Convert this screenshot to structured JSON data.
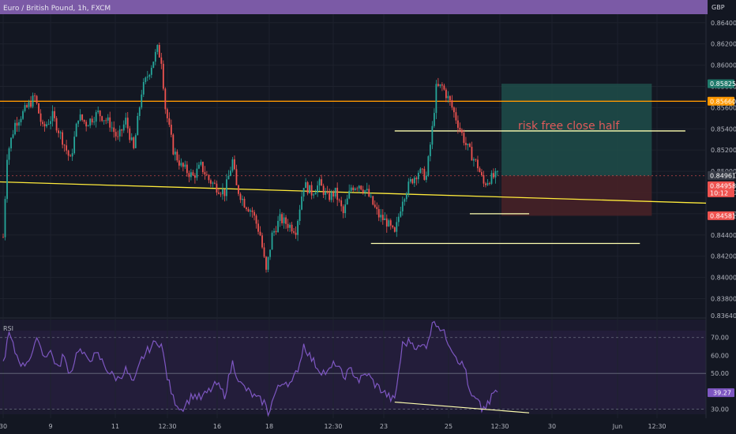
{
  "header": {
    "title": "Euro / British Pound, 1h, FXCM",
    "currency": "GBP"
  },
  "colors": {
    "bg": "#131722",
    "header": "#7b5aa6",
    "up": "#26a69a",
    "down": "#ef5350",
    "rsi": "#7e57c2",
    "orange": "#ff9800",
    "yellow": "#ffeb3b",
    "white_line": "#ffffb0",
    "profit_zone": "#1f4e4a",
    "loss_zone": "#4a2227"
  },
  "price_axis": {
    "ticks": [
      "0.86400",
      "0.86200",
      "0.86000",
      "0.85800",
      "0.85600",
      "0.85400",
      "0.85200",
      "0.85000",
      "0.84800",
      "0.84600",
      "0.84400",
      "0.84200",
      "0.84000",
      "0.83800",
      "0.83640"
    ],
    "tick_values": [
      0.864,
      0.862,
      0.86,
      0.858,
      0.856,
      0.854,
      0.852,
      0.85,
      0.848,
      0.846,
      0.844,
      0.842,
      0.84,
      0.838,
      0.8364
    ]
  },
  "price_labels": {
    "target": "0.85825",
    "resistance": "0.85660",
    "last_a": "0.84961",
    "last_b": "0.84958",
    "countdown": "10:12",
    "stop": "0.84581"
  },
  "annotation": {
    "text": "risk free close half"
  },
  "rsi": {
    "label": "RSI",
    "ticks": [
      "70.00",
      "60.00",
      "50.00",
      "40.00",
      "30.00"
    ],
    "tick_values": [
      70,
      60,
      50,
      40,
      30
    ],
    "current": "39.27"
  },
  "time_axis": {
    "labels": [
      "30",
      "9",
      "11",
      "12:30",
      "16",
      "18",
      "12:30",
      "23",
      "25",
      "12:30",
      "30",
      "Jun",
      "12:30"
    ]
  },
  "chart_data": {
    "type": "candlestick",
    "title": "Euro / British Pound, 1h, FXCM",
    "y_unit": "GBP",
    "ylim": [
      0.8364,
      0.8648
    ],
    "close_path": [
      {
        "t": 0,
        "p": 0.8438
      },
      {
        "t": 2,
        "p": 0.8515
      },
      {
        "t": 6,
        "p": 0.8545
      },
      {
        "t": 10,
        "p": 0.8555
      },
      {
        "t": 16,
        "p": 0.857
      },
      {
        "t": 20,
        "p": 0.854
      },
      {
        "t": 25,
        "p": 0.8552
      },
      {
        "t": 30,
        "p": 0.853
      },
      {
        "t": 34,
        "p": 0.851
      },
      {
        "t": 38,
        "p": 0.8552
      },
      {
        "t": 42,
        "p": 0.8545
      },
      {
        "t": 48,
        "p": 0.8555
      },
      {
        "t": 54,
        "p": 0.8545
      },
      {
        "t": 58,
        "p": 0.853
      },
      {
        "t": 62,
        "p": 0.8548
      },
      {
        "t": 66,
        "p": 0.852
      },
      {
        "t": 70,
        "p": 0.8575
      },
      {
        "t": 74,
        "p": 0.8595
      },
      {
        "t": 78,
        "p": 0.8615
      },
      {
        "t": 80,
        "p": 0.8605
      },
      {
        "t": 82,
        "p": 0.856
      },
      {
        "t": 86,
        "p": 0.852
      },
      {
        "t": 90,
        "p": 0.8505
      },
      {
        "t": 96,
        "p": 0.8495
      },
      {
        "t": 100,
        "p": 0.8505
      },
      {
        "t": 104,
        "p": 0.8492
      },
      {
        "t": 108,
        "p": 0.8485
      },
      {
        "t": 112,
        "p": 0.848
      },
      {
        "t": 116,
        "p": 0.851
      },
      {
        "t": 118,
        "p": 0.8485
      },
      {
        "t": 122,
        "p": 0.847
      },
      {
        "t": 126,
        "p": 0.8462
      },
      {
        "t": 130,
        "p": 0.844
      },
      {
        "t": 133,
        "p": 0.8405
      },
      {
        "t": 136,
        "p": 0.844
      },
      {
        "t": 140,
        "p": 0.8455
      },
      {
        "t": 144,
        "p": 0.845
      },
      {
        "t": 148,
        "p": 0.8445
      },
      {
        "t": 152,
        "p": 0.8488
      },
      {
        "t": 156,
        "p": 0.848
      },
      {
        "t": 160,
        "p": 0.8488
      },
      {
        "t": 164,
        "p": 0.8475
      },
      {
        "t": 168,
        "p": 0.848
      },
      {
        "t": 172,
        "p": 0.846
      },
      {
        "t": 176,
        "p": 0.8485
      },
      {
        "t": 180,
        "p": 0.8488
      },
      {
        "t": 184,
        "p": 0.848
      },
      {
        "t": 188,
        "p": 0.8465
      },
      {
        "t": 190,
        "p": 0.8458
      },
      {
        "t": 194,
        "p": 0.8452
      },
      {
        "t": 198,
        "p": 0.844
      },
      {
        "t": 202,
        "p": 0.8475
      },
      {
        "t": 206,
        "p": 0.849
      },
      {
        "t": 210,
        "p": 0.85
      },
      {
        "t": 214,
        "p": 0.8495
      },
      {
        "t": 217,
        "p": 0.854
      },
      {
        "t": 219,
        "p": 0.8578
      },
      {
        "t": 222,
        "p": 0.858
      },
      {
        "t": 226,
        "p": 0.8565
      },
      {
        "t": 230,
        "p": 0.8545
      },
      {
        "t": 234,
        "p": 0.8525
      },
      {
        "t": 237,
        "p": 0.8515
      },
      {
        "t": 240,
        "p": 0.8505
      },
      {
        "t": 243,
        "p": 0.8488
      },
      {
        "t": 246,
        "p": 0.8493
      },
      {
        "t": 250,
        "p": 0.8496
      }
    ],
    "horizontal_levels": [
      {
        "name": "resistance",
        "value": 0.8566,
        "color": "orange"
      },
      {
        "name": "white-level-top",
        "value": 0.8538,
        "t_start": 198,
        "t_end": 345
      },
      {
        "name": "white-level-mid",
        "value": 0.846,
        "t_start": 236,
        "t_end": 266
      },
      {
        "name": "white-level-low",
        "value": 0.8432,
        "t_start": 186,
        "t_end": 322
      }
    ],
    "trendline": {
      "t0": 0,
      "p0": 0.849,
      "t1": 358,
      "p1": 0.847
    },
    "position": {
      "entry": 0.84958,
      "target": 0.85825,
      "stop": 0.84581,
      "t_start": 252,
      "t_end": 328
    },
    "rsi_series": [
      {
        "t": 0,
        "v": 56
      },
      {
        "t": 3,
        "v": 72
      },
      {
        "t": 6,
        "v": 62
      },
      {
        "t": 10,
        "v": 54
      },
      {
        "t": 14,
        "v": 60
      },
      {
        "t": 18,
        "v": 70
      },
      {
        "t": 20,
        "v": 60
      },
      {
        "t": 24,
        "v": 62
      },
      {
        "t": 28,
        "v": 52
      },
      {
        "t": 30,
        "v": 60
      },
      {
        "t": 34,
        "v": 50
      },
      {
        "t": 38,
        "v": 64
      },
      {
        "t": 42,
        "v": 58
      },
      {
        "t": 48,
        "v": 60
      },
      {
        "t": 54,
        "v": 50
      },
      {
        "t": 58,
        "v": 47
      },
      {
        "t": 62,
        "v": 52
      },
      {
        "t": 66,
        "v": 44
      },
      {
        "t": 70,
        "v": 58
      },
      {
        "t": 74,
        "v": 64
      },
      {
        "t": 78,
        "v": 68
      },
      {
        "t": 80,
        "v": 66
      },
      {
        "t": 83,
        "v": 48
      },
      {
        "t": 86,
        "v": 36
      },
      {
        "t": 90,
        "v": 30
      },
      {
        "t": 96,
        "v": 38
      },
      {
        "t": 100,
        "v": 36
      },
      {
        "t": 104,
        "v": 40
      },
      {
        "t": 108,
        "v": 44
      },
      {
        "t": 112,
        "v": 38
      },
      {
        "t": 116,
        "v": 56
      },
      {
        "t": 120,
        "v": 44
      },
      {
        "t": 124,
        "v": 40
      },
      {
        "t": 128,
        "v": 36
      },
      {
        "t": 132,
        "v": 34
      },
      {
        "t": 134,
        "v": 28
      },
      {
        "t": 138,
        "v": 40
      },
      {
        "t": 142,
        "v": 46
      },
      {
        "t": 146,
        "v": 44
      },
      {
        "t": 150,
        "v": 56
      },
      {
        "t": 152,
        "v": 66
      },
      {
        "t": 156,
        "v": 58
      },
      {
        "t": 160,
        "v": 52
      },
      {
        "t": 164,
        "v": 50
      },
      {
        "t": 168,
        "v": 56
      },
      {
        "t": 172,
        "v": 48
      },
      {
        "t": 176,
        "v": 52
      },
      {
        "t": 180,
        "v": 46
      },
      {
        "t": 184,
        "v": 50
      },
      {
        "t": 188,
        "v": 44
      },
      {
        "t": 192,
        "v": 40
      },
      {
        "t": 196,
        "v": 36
      },
      {
        "t": 198,
        "v": 35
      },
      {
        "t": 202,
        "v": 66
      },
      {
        "t": 206,
        "v": 68
      },
      {
        "t": 210,
        "v": 64
      },
      {
        "t": 214,
        "v": 66
      },
      {
        "t": 218,
        "v": 80
      },
      {
        "t": 222,
        "v": 74
      },
      {
        "t": 226,
        "v": 66
      },
      {
        "t": 230,
        "v": 58
      },
      {
        "t": 234,
        "v": 52
      },
      {
        "t": 236,
        "v": 38
      },
      {
        "t": 240,
        "v": 34
      },
      {
        "t": 242,
        "v": 30
      },
      {
        "t": 246,
        "v": 33
      },
      {
        "t": 248,
        "v": 40
      },
      {
        "t": 250,
        "v": 39.27
      }
    ],
    "rsi_divergence": {
      "t0": 198,
      "v0": 34,
      "t1": 266,
      "v1": 28
    }
  }
}
